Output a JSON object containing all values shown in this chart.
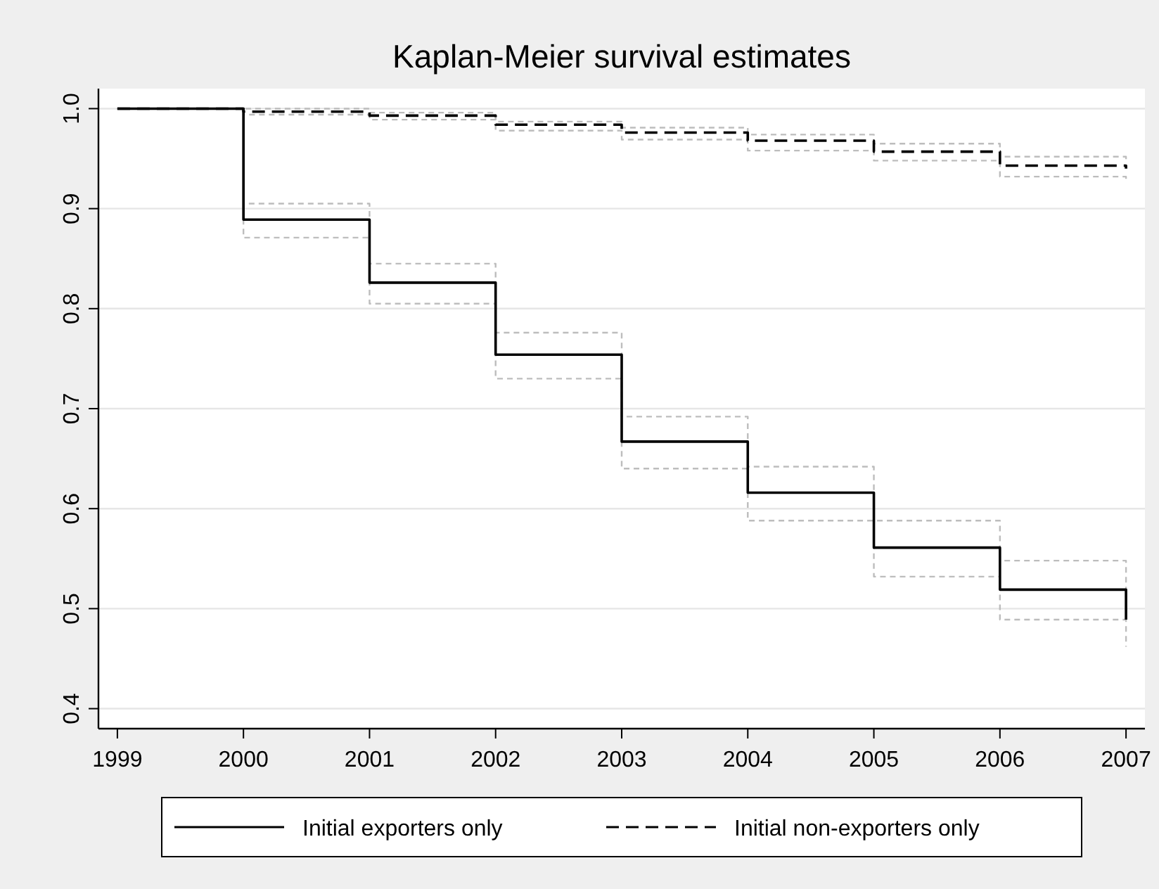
{
  "chart_data": {
    "type": "step",
    "title": "Kaplan-Meier survival estimates",
    "x": [
      1999,
      2000,
      2001,
      2002,
      2003,
      2004,
      2005,
      2006,
      2007
    ],
    "xlim": [
      1998.85,
      2007.15
    ],
    "xticks": [
      1999,
      2000,
      2001,
      2002,
      2003,
      2004,
      2005,
      2006,
      2007
    ],
    "ylim": [
      0.38,
      1.02
    ],
    "yticks": [
      {
        "value": 0.4,
        "label": "0.4"
      },
      {
        "value": 0.5,
        "label": "0.5"
      },
      {
        "value": 0.6,
        "label": "0.6"
      },
      {
        "value": 0.7,
        "label": "0.7"
      },
      {
        "value": 0.8,
        "label": "0.8"
      },
      {
        "value": 0.9,
        "label": "0.9"
      },
      {
        "value": 1,
        "label": "1.0"
      }
    ],
    "grid": "y",
    "legend": "bottom",
    "series": [
      {
        "color": "#bdbdbd",
        "line_style": "dotted",
        "values": [
          1,
          0.871,
          0.805,
          0.73,
          0.64,
          0.588,
          0.532,
          0.489,
          0.462
        ]
      },
      {
        "color": "#bdbdbd",
        "line_style": "dotted",
        "values": [
          1,
          0.905,
          0.845,
          0.776,
          0.692,
          0.642,
          0.588,
          0.548,
          0.519
        ]
      },
      {
        "color": "#bdbdbd",
        "line_style": "dotted",
        "values": [
          1,
          0.994,
          0.989,
          0.978,
          0.969,
          0.958,
          0.948,
          0.932,
          0.928
        ]
      },
      {
        "color": "#bdbdbd",
        "line_style": "dotted",
        "values": [
          1,
          1,
          0.996,
          0.987,
          0.981,
          0.974,
          0.965,
          0.952,
          0.949
        ]
      },
      {
        "name": "Initial exporters only",
        "color": "#000000",
        "line_style": "solid",
        "values": [
          1,
          0.889,
          0.826,
          0.754,
          0.667,
          0.616,
          0.561,
          0.519,
          0.489
        ]
      },
      {
        "name": "Initial non-exporters only",
        "color": "#000000",
        "line_style": "dashed",
        "values": [
          1,
          0.997,
          0.993,
          0.984,
          0.976,
          0.968,
          0.957,
          0.943,
          0.94
        ]
      }
    ]
  }
}
